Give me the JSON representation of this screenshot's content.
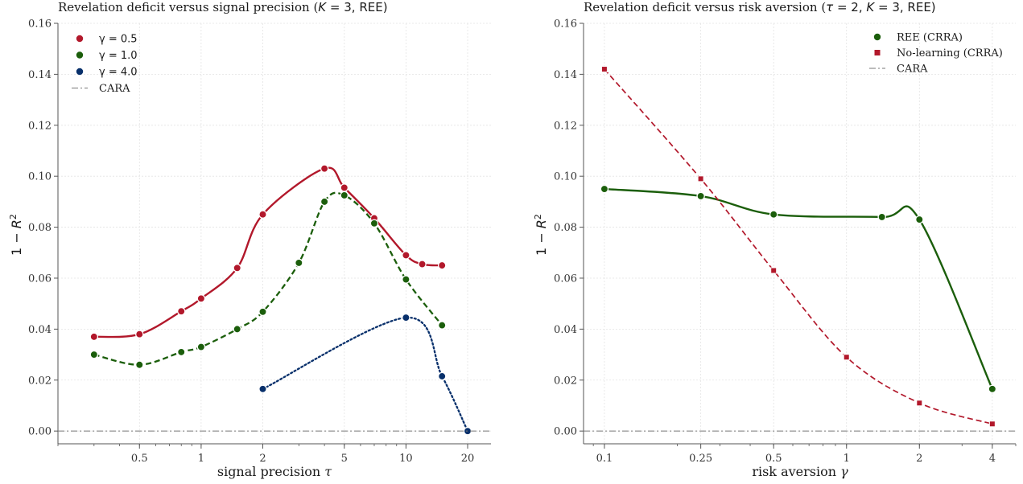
{
  "chart_data": [
    {
      "type": "line",
      "title": "Revelation deficit versus signal precision  (K = 3, REE)",
      "xlabel": "signal precision τ",
      "ylabel": "1 − R²",
      "xscale": "log",
      "xlim": [
        0.2,
        26
      ],
      "ylim": [
        -0.005,
        0.16
      ],
      "xticks": [
        0.5,
        1,
        2,
        5,
        10,
        20
      ],
      "xtick_labels": [
        "0.5",
        "1",
        "2",
        "5",
        "10",
        "20"
      ],
      "yticks": [
        0.0,
        0.02,
        0.04,
        0.06,
        0.08,
        0.1,
        0.12,
        0.14,
        0.16
      ],
      "ytick_labels": [
        "0.00",
        "0.02",
        "0.04",
        "0.06",
        "0.08",
        "0.10",
        "0.12",
        "0.14",
        "0.16"
      ],
      "grid": true,
      "legend_position": "top-left",
      "series": [
        {
          "name": "γ = 0.5",
          "color": "#b2182b",
          "line": "solid",
          "marker": "circle",
          "x": [
            0.3,
            0.5,
            0.8,
            1.0,
            1.5,
            2.0,
            4.0,
            5.0,
            7.0,
            10.0,
            12.0,
            15.0
          ],
          "y": [
            0.037,
            0.038,
            0.047,
            0.052,
            0.064,
            0.085,
            0.103,
            0.0955,
            0.0835,
            0.069,
            0.0655,
            0.065
          ]
        },
        {
          "name": "γ = 1.0",
          "color": "#1b5e0b",
          "line": "dashed",
          "marker": "circle",
          "x": [
            0.3,
            0.5,
            0.8,
            1.0,
            1.5,
            2.0,
            3.0,
            4.0,
            5.0,
            7.0,
            10.0,
            15.0
          ],
          "y": [
            0.03,
            0.026,
            0.031,
            0.033,
            0.04,
            0.0468,
            0.066,
            0.09,
            0.0925,
            0.0815,
            0.0595,
            0.0415
          ]
        },
        {
          "name": "γ = 4.0",
          "color": "#08306b",
          "line": "dotted",
          "marker": "circle",
          "x": [
            2.0,
            10.0,
            15.0,
            20.0
          ],
          "y": [
            0.0165,
            0.0445,
            0.0215,
            0.0
          ]
        },
        {
          "name": "CARA",
          "color": "#777777",
          "line": "dashdot",
          "marker": "none",
          "constant": 0.0
        }
      ]
    },
    {
      "type": "line",
      "title": "Revelation deficit versus risk aversion  (τ = 2, K = 3, REE)",
      "xlabel": "risk aversion γ",
      "ylabel": "1 − R²",
      "xscale": "log",
      "xlim": [
        0.082,
        5.0
      ],
      "ylim": [
        -0.005,
        0.16
      ],
      "xticks": [
        0.1,
        0.25,
        0.5,
        1,
        2,
        4
      ],
      "xtick_labels": [
        "0.1",
        "0.25",
        "0.5",
        "1",
        "2",
        "4"
      ],
      "yticks": [
        0.0,
        0.02,
        0.04,
        0.06,
        0.08,
        0.1,
        0.12,
        0.14,
        0.16
      ],
      "ytick_labels": [
        "0.00",
        "0.02",
        "0.04",
        "0.06",
        "0.08",
        "0.10",
        "0.12",
        "0.14",
        "0.16"
      ],
      "grid": true,
      "legend_position": "top-right",
      "series": [
        {
          "name": "REE (CRRA)",
          "color": "#1b5e0b",
          "line": "solid",
          "marker": "circle",
          "x": [
            0.1,
            0.25,
            0.5,
            1.4,
            2.0,
            4.0
          ],
          "y": [
            0.095,
            0.0922,
            0.085,
            0.084,
            0.083,
            0.0165
          ]
        },
        {
          "name": "No-learning (CRRA)",
          "color": "#b2182b",
          "line": "dashed",
          "marker": "square",
          "x": [
            0.1,
            0.25,
            0.5,
            1.0,
            2.0,
            4.0
          ],
          "y": [
            0.142,
            0.099,
            0.063,
            0.029,
            0.011,
            0.0028
          ]
        },
        {
          "name": "CARA",
          "color": "#777777",
          "line": "dashdot",
          "marker": "none",
          "constant": 0.0
        }
      ]
    }
  ]
}
